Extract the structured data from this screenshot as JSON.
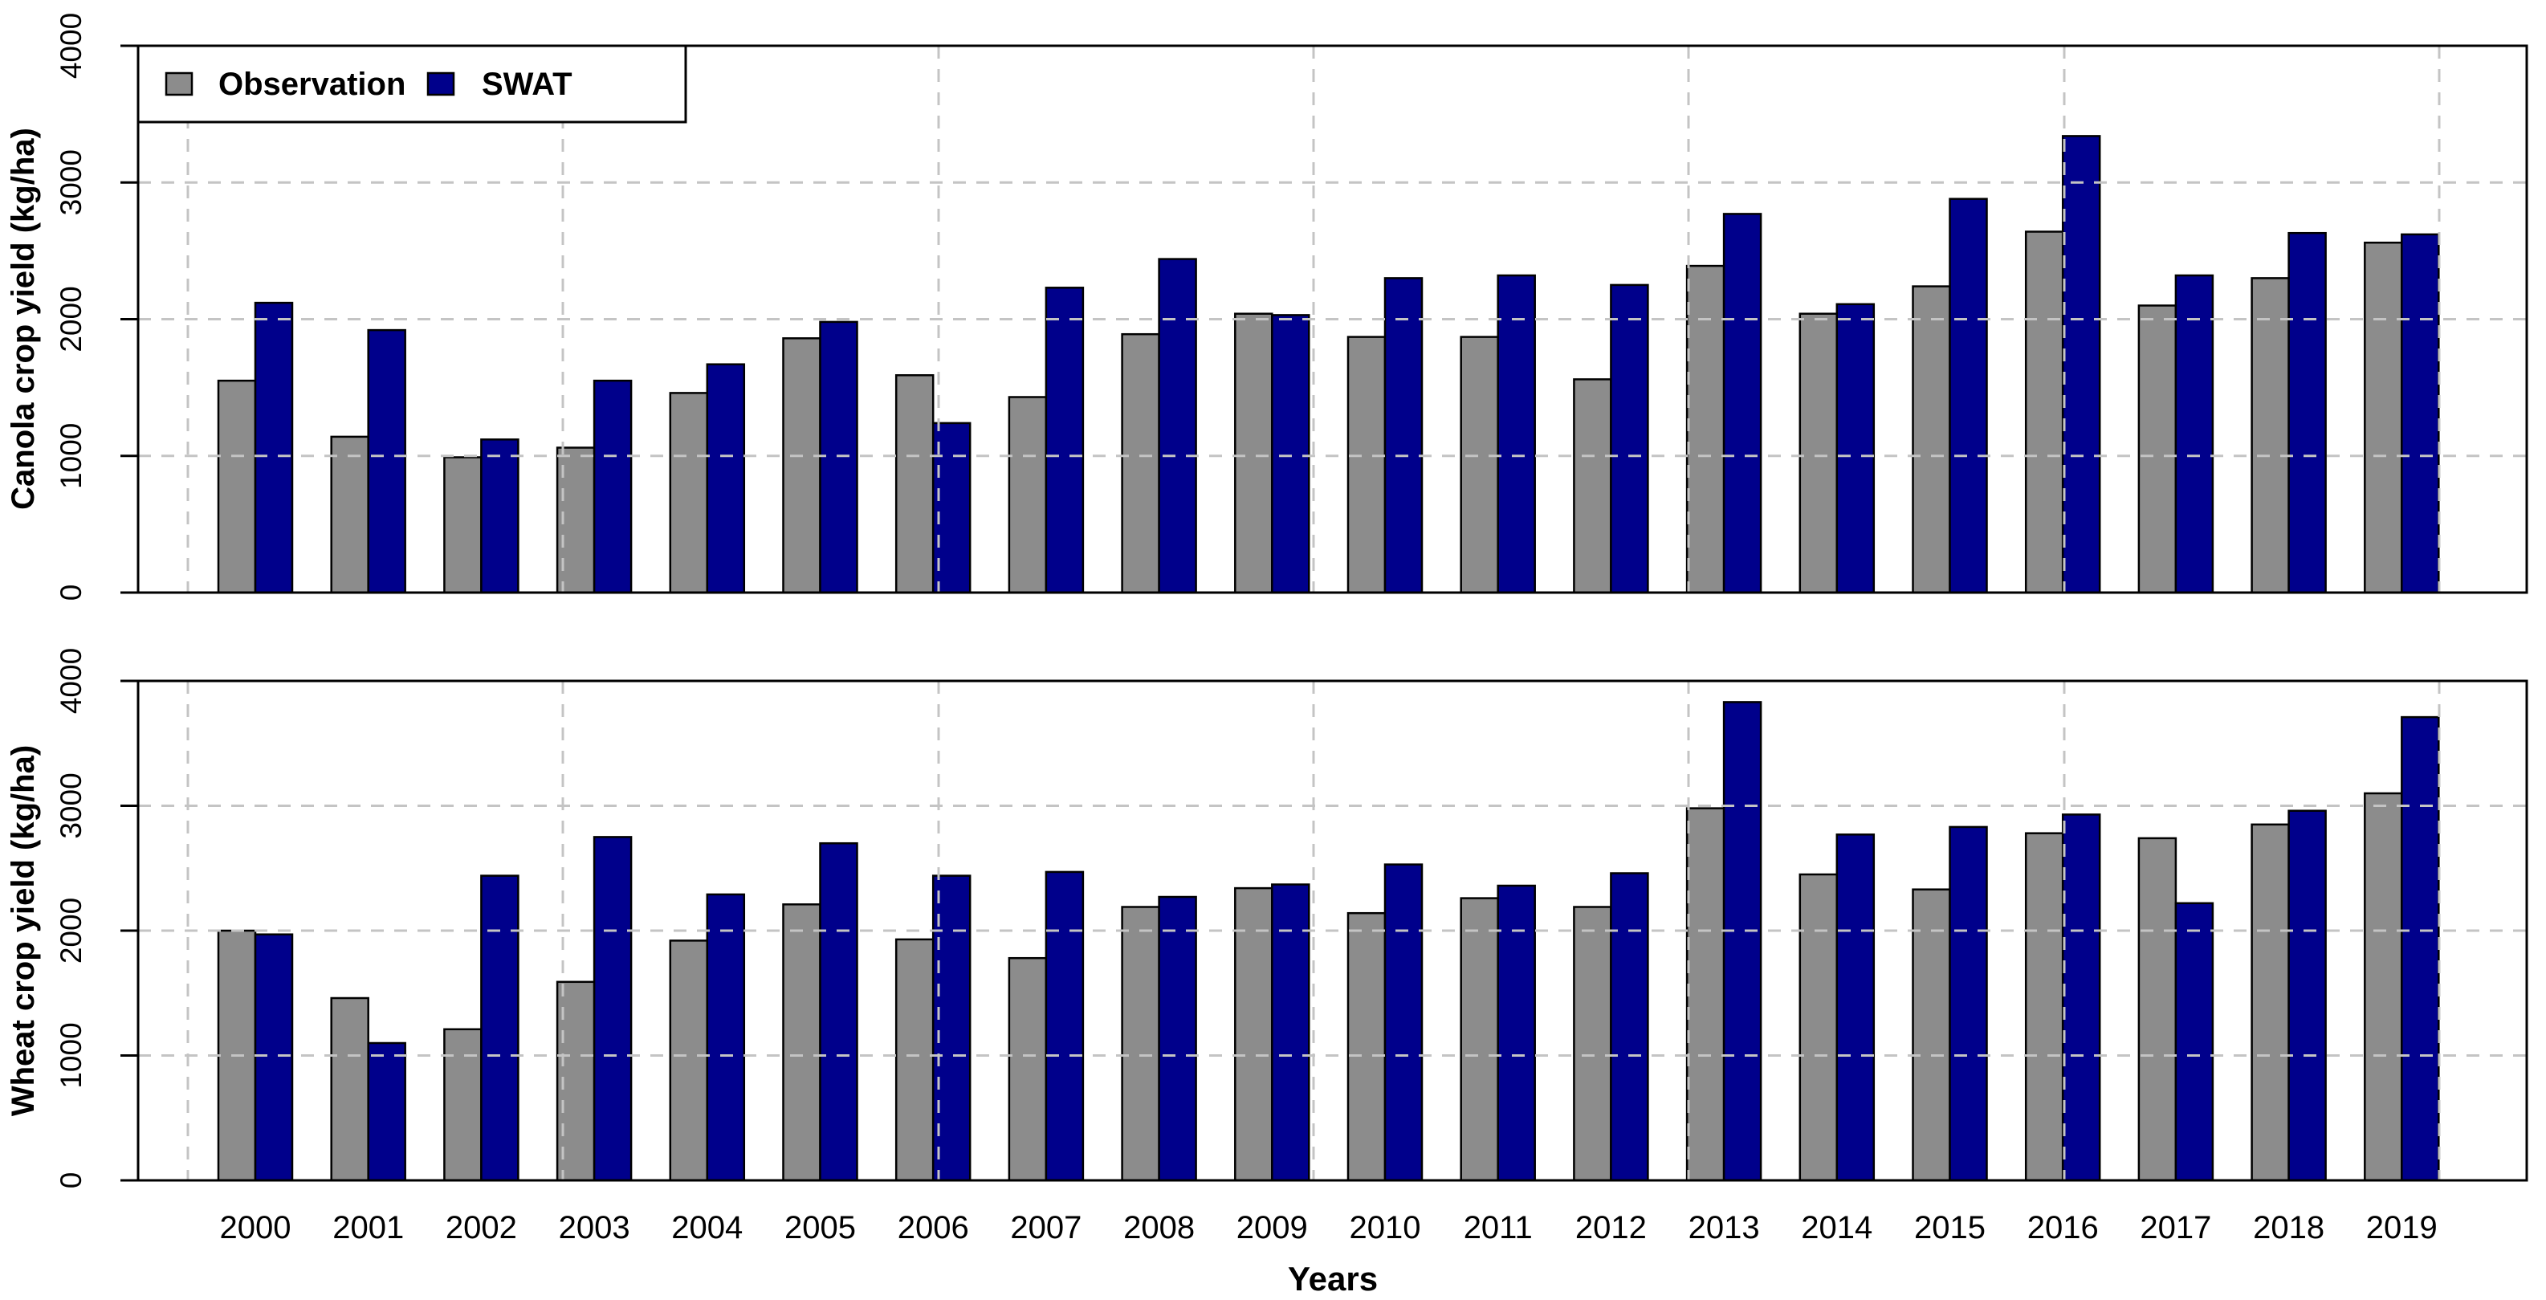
{
  "figure": {
    "background": "#ffffff",
    "x_axis_title": "Years",
    "legend": {
      "position": "top-left",
      "items": [
        {
          "label": "Observation",
          "color": "#8c8c8c"
        },
        {
          "label": "SWAT",
          "color": "#00008b"
        }
      ]
    },
    "grid_color": "#c4c4c4",
    "bar_border_color": "#000000"
  },
  "chart_data": [
    {
      "type": "bar",
      "title": "",
      "ylabel": "Canola crop yield (kg/ha)",
      "xlabel": "Years",
      "ylim": [
        0,
        4000
      ],
      "yticks": [
        0,
        1000,
        2000,
        3000,
        4000
      ],
      "grid": "dashed",
      "legend_position": "top-left",
      "categories": [
        "2000",
        "2001",
        "2002",
        "2003",
        "2004",
        "2005",
        "2006",
        "2007",
        "2008",
        "2009",
        "2010",
        "2011",
        "2012",
        "2013",
        "2014",
        "2015",
        "2016",
        "2017",
        "2018",
        "2019"
      ],
      "series": [
        {
          "name": "Observation",
          "color": "#8c8c8c",
          "values": [
            1550,
            1140,
            990,
            1060,
            1460,
            1860,
            1590,
            1430,
            1890,
            2040,
            1870,
            1870,
            1560,
            2390,
            2040,
            2240,
            2640,
            2100,
            2300,
            2560
          ]
        },
        {
          "name": "SWAT",
          "color": "#00008b",
          "values": [
            2120,
            1920,
            1120,
            1550,
            1670,
            1980,
            1240,
            2230,
            2440,
            2030,
            2300,
            2320,
            2250,
            2770,
            2110,
            2880,
            3340,
            2320,
            2630,
            2620
          ]
        }
      ]
    },
    {
      "type": "bar",
      "title": "",
      "ylabel": "Wheat crop yield (kg/ha)",
      "xlabel": "Years",
      "ylim": [
        0,
        4000
      ],
      "yticks": [
        0,
        1000,
        2000,
        3000,
        4000
      ],
      "grid": "dashed",
      "legend_position": "none",
      "categories": [
        "2000",
        "2001",
        "2002",
        "2003",
        "2004",
        "2005",
        "2006",
        "2007",
        "2008",
        "2009",
        "2010",
        "2011",
        "2012",
        "2013",
        "2014",
        "2015",
        "2016",
        "2017",
        "2018",
        "2019"
      ],
      "series": [
        {
          "name": "Observation",
          "color": "#8c8c8c",
          "values": [
            2000,
            1460,
            1210,
            1590,
            1920,
            2210,
            1930,
            1780,
            2190,
            2340,
            2140,
            2260,
            2190,
            2980,
            2450,
            2330,
            2780,
            2740,
            2850,
            3100
          ]
        },
        {
          "name": "SWAT",
          "color": "#00008b",
          "values": [
            1970,
            1100,
            2440,
            2750,
            2290,
            2700,
            2440,
            2470,
            2270,
            2370,
            2530,
            2360,
            2460,
            3830,
            2770,
            2830,
            2930,
            2220,
            2960,
            3710
          ]
        }
      ]
    }
  ]
}
